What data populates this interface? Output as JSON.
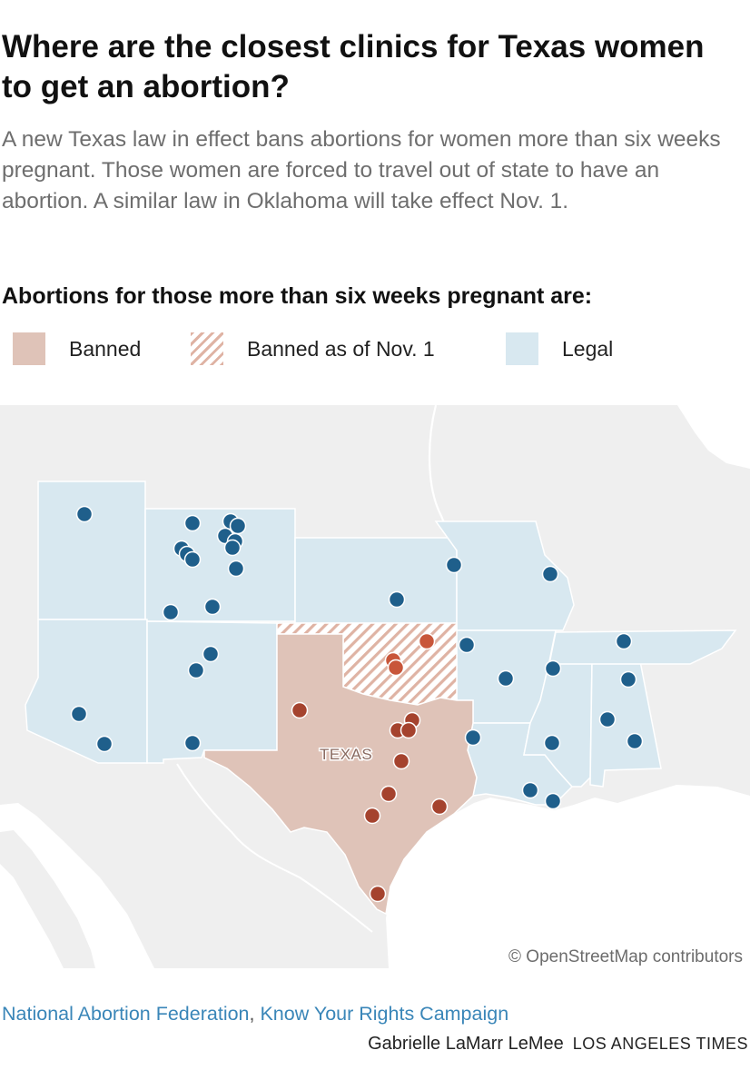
{
  "header": {
    "title": "Where are the closest clinics for Texas women to get an abortion?",
    "subtitle": "A new Texas law in effect bans abortions for women more than six weeks pregnant. Those women are forced to travel out of state to have an abortion. A similar law in Oklahoma will take effect Nov. 1."
  },
  "legend": {
    "title": "Abortions for those more than six weeks pregnant are:",
    "items": [
      {
        "label": "Banned",
        "color": "#dfc3b8"
      },
      {
        "label": "Banned as of Nov. 1",
        "color": "#dfb3a4"
      },
      {
        "label": "Legal",
        "color": "#d8e8f0"
      }
    ]
  },
  "map": {
    "state_label": "TEXAS",
    "attribution": "© OpenStreetMap contributors",
    "colors": {
      "banned": "#dfc3b8",
      "nov1_hatch": "#dfb3a4",
      "legal": "#d8e8f0",
      "clinic_legal": "#1f5f8b",
      "clinic_banned": "#a5432e",
      "clinic_nov1": "#c8563a",
      "land": "#efefef",
      "water": "#ffffff"
    }
  },
  "footer": {
    "source_1": "National Abortion Federation",
    "source_sep": ", ",
    "source_2": "Know Your Rights Campaign",
    "author": "Gabrielle LaMarr LeMee",
    "publication": "LOS ANGELES TIMES"
  }
}
